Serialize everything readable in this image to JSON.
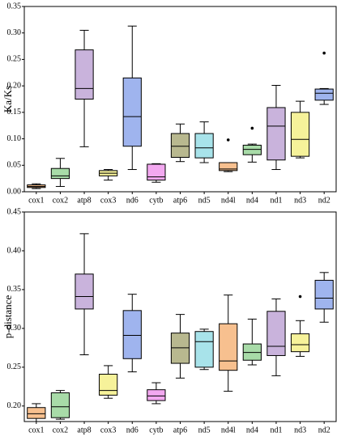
{
  "chart_data": [
    {
      "type": "box",
      "y_label": "Ka/Ks",
      "categories": [
        "cox1",
        "cox2",
        "atp8",
        "cox3",
        "nd6",
        "cytb",
        "atp6",
        "nd5",
        "nd4l",
        "nd4",
        "nd1",
        "nd3",
        "nd2"
      ],
      "colors": [
        "#f7c08f",
        "#a8dba8",
        "#c9b3dc",
        "#f6f29a",
        "#9fb4ee",
        "#f3a8f0",
        "#b8b88f",
        "#a8e3ea",
        "#f7c08f",
        "#a8dba8",
        "#c9b3dc",
        "#f6f29a",
        "#9fb4ee"
      ],
      "boxes": [
        {
          "min": 0.006,
          "q1": 0.008,
          "median": 0.01,
          "q3": 0.013,
          "max": 0.015,
          "outliers": []
        },
        {
          "min": 0.01,
          "q1": 0.025,
          "median": 0.03,
          "q3": 0.044,
          "max": 0.063,
          "outliers": []
        },
        {
          "min": 0.085,
          "q1": 0.175,
          "median": 0.195,
          "q3": 0.268,
          "max": 0.305,
          "outliers": []
        },
        {
          "min": 0.022,
          "q1": 0.03,
          "median": 0.035,
          "q3": 0.04,
          "max": 0.042,
          "outliers": []
        },
        {
          "min": 0.042,
          "q1": 0.086,
          "median": 0.142,
          "q3": 0.215,
          "max": 0.313,
          "outliers": []
        },
        {
          "min": 0.018,
          "q1": 0.022,
          "median": 0.028,
          "q3": 0.052,
          "max": 0.053,
          "outliers": []
        },
        {
          "min": 0.057,
          "q1": 0.065,
          "median": 0.086,
          "q3": 0.11,
          "max": 0.128,
          "outliers": []
        },
        {
          "min": 0.055,
          "q1": 0.064,
          "median": 0.083,
          "q3": 0.11,
          "max": 0.132,
          "outliers": []
        },
        {
          "min": 0.038,
          "q1": 0.04,
          "median": 0.043,
          "q3": 0.055,
          "max": 0.055,
          "outliers": [
            0.098
          ]
        },
        {
          "min": 0.056,
          "q1": 0.07,
          "median": 0.08,
          "q3": 0.088,
          "max": 0.09,
          "outliers": [
            0.12
          ]
        },
        {
          "min": 0.042,
          "q1": 0.06,
          "median": 0.124,
          "q3": 0.159,
          "max": 0.201,
          "outliers": []
        },
        {
          "min": 0.064,
          "q1": 0.067,
          "median": 0.099,
          "q3": 0.15,
          "max": 0.171,
          "outliers": []
        },
        {
          "min": 0.165,
          "q1": 0.173,
          "median": 0.186,
          "q3": 0.194,
          "max": 0.195,
          "outliers": [
            0.262
          ]
        }
      ],
      "ylim": [
        0,
        0.35
      ],
      "yticks": [
        {
          "value": 0,
          "label": "0.00"
        },
        {
          "value": 0.05,
          "label": "0.05"
        },
        {
          "value": 0.1,
          "label": "0.10"
        },
        {
          "value": 0.15,
          "label": "0.15"
        },
        {
          "value": 0.2,
          "label": "0.20"
        },
        {
          "value": 0.25,
          "label": "0.25"
        },
        {
          "value": 0.3,
          "label": "0.30"
        },
        {
          "value": 0.35,
          "label": "0.35"
        }
      ]
    },
    {
      "type": "box",
      "y_label": "p-distance",
      "categories": [
        "cox1",
        "cox2",
        "atp8",
        "cox3",
        "nd6",
        "cytb",
        "atp6",
        "nd5",
        "nd4l",
        "nd4",
        "nd1",
        "nd3",
        "nd2"
      ],
      "colors": [
        "#f7c08f",
        "#a8dba8",
        "#c9b3dc",
        "#f6f29a",
        "#9fb4ee",
        "#f3a8f0",
        "#b8b88f",
        "#a8e3ea",
        "#f7c08f",
        "#a8dba8",
        "#c9b3dc",
        "#f6f29a",
        "#9fb4ee"
      ],
      "boxes": [
        {
          "min": 0.18,
          "q1": 0.184,
          "median": 0.19,
          "q3": 0.198,
          "max": 0.203,
          "outliers": []
        },
        {
          "min": 0.183,
          "q1": 0.185,
          "median": 0.199,
          "q3": 0.217,
          "max": 0.22,
          "outliers": []
        },
        {
          "min": 0.266,
          "q1": 0.325,
          "median": 0.341,
          "q3": 0.37,
          "max": 0.422,
          "outliers": []
        },
        {
          "min": 0.21,
          "q1": 0.214,
          "median": 0.22,
          "q3": 0.241,
          "max": 0.252,
          "outliers": []
        },
        {
          "min": 0.244,
          "q1": 0.261,
          "median": 0.291,
          "q3": 0.323,
          "max": 0.344,
          "outliers": []
        },
        {
          "min": 0.203,
          "q1": 0.207,
          "median": 0.213,
          "q3": 0.221,
          "max": 0.23,
          "outliers": []
        },
        {
          "min": 0.236,
          "q1": 0.255,
          "median": 0.275,
          "q3": 0.294,
          "max": 0.318,
          "outliers": []
        },
        {
          "min": 0.247,
          "q1": 0.25,
          "median": 0.283,
          "q3": 0.296,
          "max": 0.299,
          "outliers": []
        },
        {
          "min": 0.219,
          "q1": 0.246,
          "median": 0.258,
          "q3": 0.306,
          "max": 0.343,
          "outliers": []
        },
        {
          "min": 0.253,
          "q1": 0.259,
          "median": 0.269,
          "q3": 0.28,
          "max": 0.312,
          "outliers": []
        },
        {
          "min": 0.239,
          "q1": 0.265,
          "median": 0.277,
          "q3": 0.322,
          "max": 0.338,
          "outliers": []
        },
        {
          "min": 0.264,
          "q1": 0.27,
          "median": 0.279,
          "q3": 0.293,
          "max": 0.31,
          "outliers": [
            0.341
          ]
        },
        {
          "min": 0.308,
          "q1": 0.325,
          "median": 0.339,
          "q3": 0.362,
          "max": 0.372,
          "outliers": []
        }
      ],
      "ylim": [
        0.18,
        0.45
      ],
      "yticks": [
        {
          "value": 0.2,
          "label": "0.20"
        },
        {
          "value": 0.25,
          "label": "0.25"
        },
        {
          "value": 0.3,
          "label": "0.30"
        },
        {
          "value": 0.35,
          "label": "0.35"
        },
        {
          "value": 0.4,
          "label": "0.40"
        },
        {
          "value": 0.45,
          "label": "0.45"
        }
      ]
    }
  ]
}
